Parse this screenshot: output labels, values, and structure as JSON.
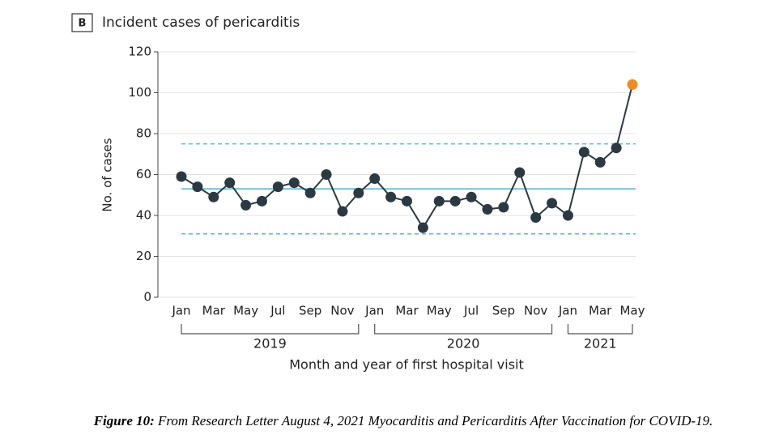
{
  "chart_data": {
    "type": "line",
    "badge": "B",
    "title": "Incident cases of pericarditis",
    "ylabel": "No. of cases",
    "xlabel": "Month and year of first hospital visit",
    "categories": [
      "Jan",
      null,
      "Mar",
      null,
      "May",
      null,
      "Jul",
      null,
      "Sep",
      null,
      "Nov",
      null,
      "Jan",
      null,
      "Mar",
      null,
      "May",
      null,
      "Jul",
      null,
      "Sep",
      null,
      "Nov",
      null,
      "Jan",
      null,
      "Mar",
      null,
      "May"
    ],
    "groups": [
      {
        "name": "2019",
        "size": 12
      },
      {
        "name": "2020",
        "size": 12
      },
      {
        "name": "2021",
        "size": 5
      }
    ],
    "series": [
      {
        "color": "#2b3a42",
        "last_point_color": "#f08a24",
        "values": [
          59,
          54,
          49,
          56,
          45,
          47,
          54,
          56,
          51,
          60,
          42,
          51,
          58,
          49,
          47,
          34,
          47,
          47,
          49,
          43,
          44,
          61,
          39,
          46,
          40,
          71,
          66,
          73,
          104
        ]
      }
    ],
    "reference_lines": [
      {
        "value": 53,
        "style": "solid"
      },
      {
        "value": 75,
        "style": "dashed"
      },
      {
        "value": 31,
        "style": "dashed"
      }
    ],
    "reference_color": "#5bb8d4",
    "ylim": [
      0,
      120
    ],
    "yticks": [
      0,
      20,
      40,
      60,
      80,
      100,
      120
    ],
    "grid": true
  },
  "caption": {
    "label": "Figure 10:",
    "text": "From Research Letter August 4, 2021 Myocarditis and Pericarditis After Vaccination for COVID-19."
  }
}
